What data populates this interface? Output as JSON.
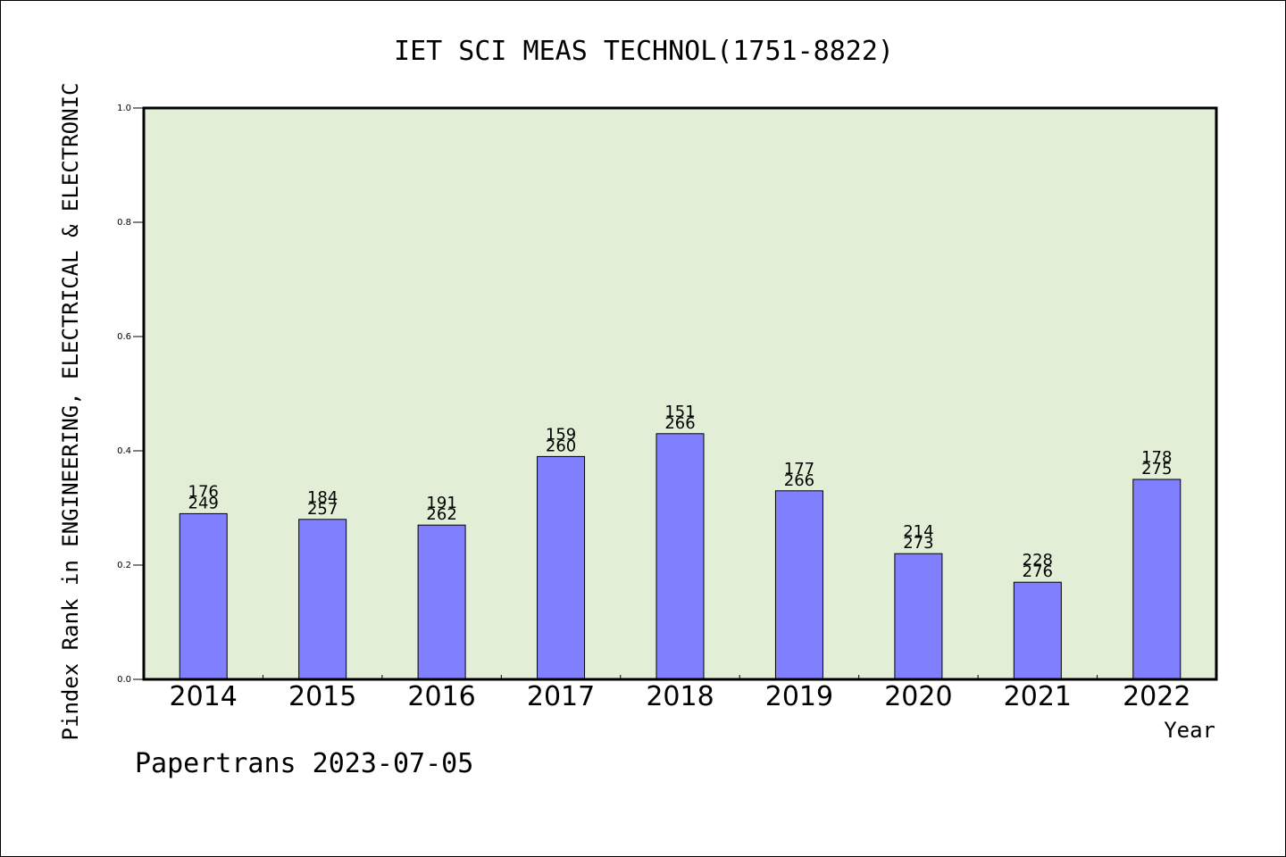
{
  "chart_data": {
    "type": "bar",
    "title": "IET SCI MEAS TECHNOL(1751-8822)",
    "xlabel": "Year",
    "ylabel": "Pindex Rank in ENGINEERING, ELECTRICAL & ELECTRONIC",
    "ylim": [
      0,
      1.0
    ],
    "yticks": [
      "0.0",
      "0.2",
      "0.4",
      "0.6",
      "0.8",
      "1.0"
    ],
    "categories": [
      "2014",
      "2015",
      "2016",
      "2017",
      "2018",
      "2019",
      "2020",
      "2021",
      "2022"
    ],
    "values": [
      0.29,
      0.28,
      0.27,
      0.39,
      0.43,
      0.33,
      0.22,
      0.17,
      0.35
    ],
    "rank_labels": [
      "176",
      "184",
      "191",
      "159",
      "151",
      "177",
      "214",
      "228",
      "178"
    ],
    "total_labels": [
      "249",
      "257",
      "262",
      "260",
      "266",
      "266",
      "273",
      "276",
      "275"
    ],
    "grid": false,
    "colors": {
      "plot_background": "#e2efd6",
      "bar_fill": "#8080ff",
      "bar_stroke": "#000000",
      "frame": "#000000"
    }
  },
  "footer": {
    "text": "Papertrans 2023-07-05"
  }
}
